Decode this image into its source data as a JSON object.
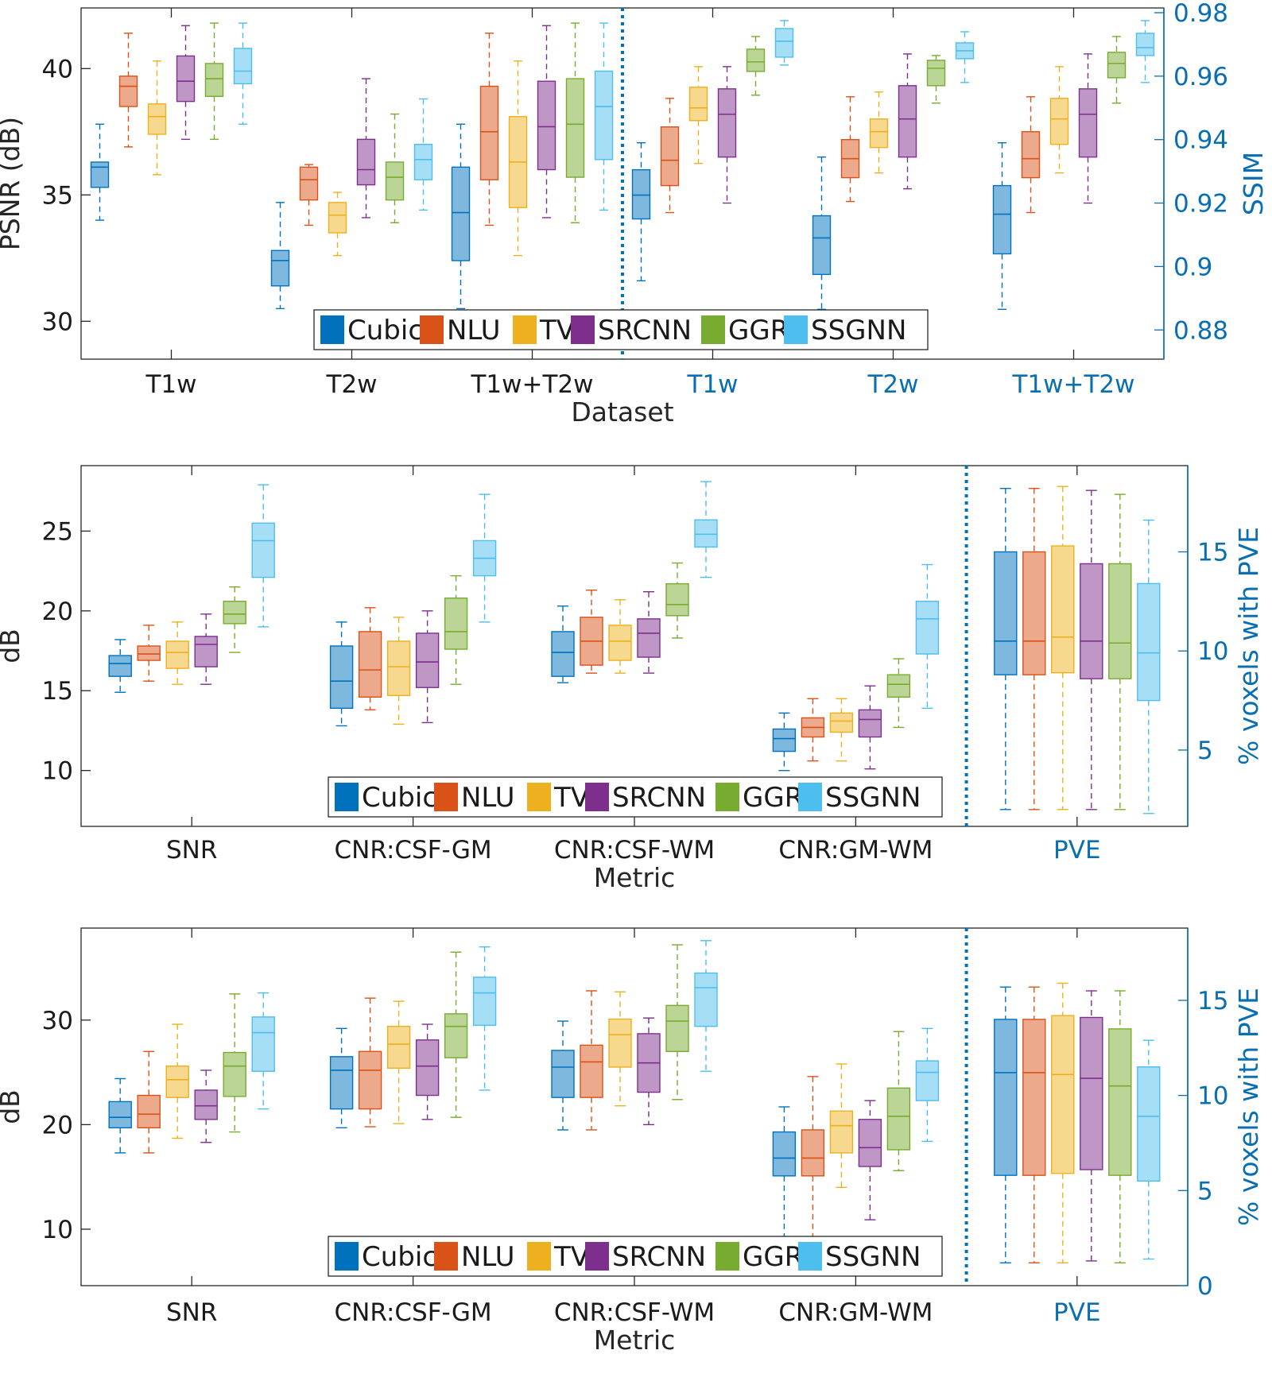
{
  "colors": {
    "Cubic": "#0072bd",
    "NLU": "#d95319",
    "TV": "#edb120",
    "SRCNN": "#7e2f8e",
    "GGR": "#77ac30",
    "SSGNN": "#4dbeee",
    "right_axis": "#0a6fb0",
    "divider": "#0072bd"
  },
  "legend": [
    "Cubic",
    "NLU",
    "TV",
    "SRCNN",
    "GGR",
    "SSGNN"
  ],
  "chart_data": [
    {
      "type": "box",
      "title": "",
      "xlabel": "Dataset",
      "categories": [
        "T1w",
        "T2w",
        "T1w+T2w",
        "T1w",
        "T2w",
        "T1w+T2w"
      ],
      "right_categories_from": 3,
      "divider_after": 3,
      "legend_position": "bottom-center",
      "left_axis": {
        "label": "PSNR (dB)",
        "range": [
          28.5,
          42.4
        ],
        "ticks": [
          30,
          35,
          40
        ]
      },
      "right_axis": {
        "label": "SSIM",
        "range": [
          0.8708,
          0.9815
        ],
        "ticks": [
          0.88,
          0.9,
          0.92,
          0.94,
          0.96,
          0.98
        ],
        "tick_labels": [
          "0.88",
          "0.9",
          "0.92",
          "0.94",
          "0.96",
          "0.98"
        ]
      },
      "series": [
        {
          "name": "Cubic",
          "boxes": [
            {
              "wlo": 34,
              "q1": 35.3,
              "med": 36.1,
              "q3": 36.3,
              "whi": 37.8
            },
            {
              "wlo": 30.5,
              "q1": 31.4,
              "med": 32.4,
              "q3": 32.8,
              "whi": 34.7
            },
            {
              "wlo": 30.5,
              "q1": 32.4,
              "med": 34.3,
              "q3": 36.1,
              "whi": 37.8
            },
            {
              "wlo": 0.8955,
              "q1": 0.915,
              "med": 0.9225,
              "q3": 0.9305,
              "whi": 0.939
            },
            {
              "wlo": 0.8865,
              "q1": 0.8975,
              "med": 0.909,
              "q3": 0.916,
              "whi": 0.9345
            },
            {
              "wlo": 0.8865,
              "q1": 0.904,
              "med": 0.9165,
              "q3": 0.9255,
              "whi": 0.939
            }
          ]
        },
        {
          "name": "NLU",
          "boxes": [
            {
              "wlo": 36.9,
              "q1": 38.5,
              "med": 39.3,
              "q3": 39.7,
              "whi": 41.4
            },
            {
              "wlo": 33.8,
              "q1": 34.8,
              "med": 35.6,
              "q3": 36.1,
              "whi": 36.2
            },
            {
              "wlo": 33.8,
              "q1": 35.6,
              "med": 37.5,
              "q3": 39.3,
              "whi": 41.4
            },
            {
              "wlo": 0.917,
              "q1": 0.9255,
              "med": 0.9335,
              "q3": 0.944,
              "whi": 0.953
            },
            {
              "wlo": 0.9205,
              "q1": 0.928,
              "med": 0.934,
              "q3": 0.94,
              "whi": 0.9535
            },
            {
              "wlo": 0.917,
              "q1": 0.928,
              "med": 0.934,
              "q3": 0.9425,
              "whi": 0.9535
            }
          ]
        },
        {
          "name": "TV",
          "boxes": [
            {
              "wlo": 35.8,
              "q1": 37.4,
              "med": 38.1,
              "q3": 38.6,
              "whi": 40.3
            },
            {
              "wlo": 32.6,
              "q1": 33.5,
              "med": 34.2,
              "q3": 34.7,
              "whi": 35.1
            },
            {
              "wlo": 32.6,
              "q1": 34.5,
              "med": 36.3,
              "q3": 38.1,
              "whi": 40.3
            },
            {
              "wlo": 0.9325,
              "q1": 0.946,
              "med": 0.95,
              "q3": 0.9565,
              "whi": 0.963
            },
            {
              "wlo": 0.9295,
              "q1": 0.9375,
              "med": 0.9425,
              "q3": 0.9465,
              "whi": 0.955
            },
            {
              "wlo": 0.9295,
              "q1": 0.9385,
              "med": 0.9465,
              "q3": 0.953,
              "whi": 0.963
            }
          ]
        },
        {
          "name": "SRCNN",
          "boxes": [
            {
              "wlo": 37.2,
              "q1": 38.7,
              "med": 39.5,
              "q3": 40.5,
              "whi": 41.7
            },
            {
              "wlo": 34.1,
              "q1": 35.4,
              "med": 36,
              "q3": 37.2,
              "whi": 39.6
            },
            {
              "wlo": 34.1,
              "q1": 36,
              "med": 37.7,
              "q3": 39.5,
              "whi": 41.7
            },
            {
              "wlo": 0.92,
              "q1": 0.9345,
              "med": 0.948,
              "q3": 0.956,
              "whi": 0.963
            },
            {
              "wlo": 0.9245,
              "q1": 0.9345,
              "med": 0.9465,
              "q3": 0.957,
              "whi": 0.967
            },
            {
              "wlo": 0.92,
              "q1": 0.9345,
              "med": 0.948,
              "q3": 0.956,
              "whi": 0.967
            }
          ]
        },
        {
          "name": "GGR",
          "boxes": [
            {
              "wlo": 37.2,
              "q1": 38.9,
              "med": 39.6,
              "q3": 40.2,
              "whi": 41.8
            },
            {
              "wlo": 33.9,
              "q1": 34.8,
              "med": 35.7,
              "q3": 36.3,
              "whi": 38.2
            },
            {
              "wlo": 33.9,
              "q1": 35.7,
              "med": 37.8,
              "q3": 39.6,
              "whi": 41.8
            },
            {
              "wlo": 0.954,
              "q1": 0.9615,
              "med": 0.9645,
              "q3": 0.9685,
              "whi": 0.9725
            },
            {
              "wlo": 0.9515,
              "q1": 0.957,
              "med": 0.9625,
              "q3": 0.965,
              "whi": 0.9665
            },
            {
              "wlo": 0.9515,
              "q1": 0.9595,
              "med": 0.964,
              "q3": 0.9675,
              "whi": 0.9725
            }
          ]
        },
        {
          "name": "SSGNN",
          "boxes": [
            {
              "wlo": 37.8,
              "q1": 39.4,
              "med": 39.9,
              "q3": 40.8,
              "whi": 41.8
            },
            {
              "wlo": 34.4,
              "q1": 35.6,
              "med": 36.4,
              "q3": 37,
              "whi": 38.8
            },
            {
              "wlo": 34.4,
              "q1": 36.4,
              "med": 38.5,
              "q3": 39.9,
              "whi": 41.8
            },
            {
              "wlo": 0.9635,
              "q1": 0.966,
              "med": 0.971,
              "q3": 0.975,
              "whi": 0.9775
            },
            {
              "wlo": 0.958,
              "q1": 0.9655,
              "med": 0.968,
              "q3": 0.9705,
              "whi": 0.974
            },
            {
              "wlo": 0.958,
              "q1": 0.9665,
              "med": 0.969,
              "q3": 0.9735,
              "whi": 0.9775
            }
          ]
        }
      ]
    },
    {
      "type": "box",
      "title": "",
      "xlabel": "Metric",
      "categories": [
        "SNR",
        "CNR:CSF-GM",
        "CNR:CSF-WM",
        "CNR:GM-WM",
        "PVE"
      ],
      "right_categories_from": 4,
      "divider_after": 4,
      "legend_position": "bottom-left",
      "left_axis": {
        "label": "dB",
        "range": [
          6.5,
          29.1
        ],
        "ticks": [
          10,
          15,
          20,
          25
        ]
      },
      "right_axis": {
        "label": "% voxels with PVE",
        "range": [
          1.15,
          19.35
        ],
        "ticks": [
          5,
          10,
          15
        ],
        "tick_labels": [
          "5",
          "10",
          "15"
        ]
      },
      "series": [
        {
          "name": "Cubic",
          "boxes": [
            {
              "wlo": 14.9,
              "q1": 15.9,
              "med": 16.7,
              "q3": 17.2,
              "whi": 18.2
            },
            {
              "wlo": 12.8,
              "q1": 13.9,
              "med": 15.6,
              "q3": 17.8,
              "whi": 19.3
            },
            {
              "wlo": 15.5,
              "q1": 15.9,
              "med": 17.4,
              "q3": 18.7,
              "whi": 20.3
            },
            {
              "wlo": 10,
              "q1": 11.2,
              "med": 12,
              "q3": 12.6,
              "whi": 13.6
            },
            {
              "wlo": 2.0,
              "q1": 8.8,
              "med": 10.5,
              "q3": 15.0,
              "whi": 18.2
            }
          ]
        },
        {
          "name": "NLU",
          "boxes": [
            {
              "wlo": 15.6,
              "q1": 16.9,
              "med": 17.3,
              "q3": 17.8,
              "whi": 19.1
            },
            {
              "wlo": 13.8,
              "q1": 14.6,
              "med": 16.3,
              "q3": 18.7,
              "whi": 20.2
            },
            {
              "wlo": 16.1,
              "q1": 16.6,
              "med": 18.1,
              "q3": 19.6,
              "whi": 21.3
            },
            {
              "wlo": 10.6,
              "q1": 12.1,
              "med": 12.7,
              "q3": 13.3,
              "whi": 14.5
            },
            {
              "wlo": 2.0,
              "q1": 8.8,
              "med": 10.5,
              "q3": 15.0,
              "whi": 18.2
            }
          ]
        },
        {
          "name": "TV",
          "boxes": [
            {
              "wlo": 15.4,
              "q1": 16.4,
              "med": 17.4,
              "q3": 18.1,
              "whi": 19.3
            },
            {
              "wlo": 12.9,
              "q1": 14.7,
              "med": 16.5,
              "q3": 18.1,
              "whi": 19.6
            },
            {
              "wlo": 16.1,
              "q1": 16.9,
              "med": 18.1,
              "q3": 19.1,
              "whi": 20.7
            },
            {
              "wlo": 10.6,
              "q1": 12.4,
              "med": 13.1,
              "q3": 13.6,
              "whi": 14.5
            },
            {
              "wlo": 2.0,
              "q1": 8.9,
              "med": 10.7,
              "q3": 15.3,
              "whi": 18.3
            }
          ]
        },
        {
          "name": "SRCNN",
          "boxes": [
            {
              "wlo": 15.4,
              "q1": 16.5,
              "med": 17.9,
              "q3": 18.4,
              "whi": 19.8
            },
            {
              "wlo": 13,
              "q1": 15.2,
              "med": 16.8,
              "q3": 18.6,
              "whi": 20
            },
            {
              "wlo": 16.1,
              "q1": 17.1,
              "med": 18.6,
              "q3": 19.5,
              "whi": 21.2
            },
            {
              "wlo": 10.1,
              "q1": 12.1,
              "med": 13.2,
              "q3": 13.8,
              "whi": 15.3
            },
            {
              "wlo": 2.0,
              "q1": 8.6,
              "med": 10.5,
              "q3": 14.4,
              "whi": 18.1
            }
          ]
        },
        {
          "name": "GGR",
          "boxes": [
            {
              "wlo": 17.4,
              "q1": 19.2,
              "med": 19.8,
              "q3": 20.6,
              "whi": 21.5
            },
            {
              "wlo": 15.4,
              "q1": 17.6,
              "med": 18.7,
              "q3": 20.8,
              "whi": 22.2
            },
            {
              "wlo": 18.3,
              "q1": 19.7,
              "med": 20.4,
              "q3": 21.7,
              "whi": 23
            },
            {
              "wlo": 12.7,
              "q1": 14.6,
              "med": 15.4,
              "q3": 16,
              "whi": 17
            },
            {
              "wlo": 2.0,
              "q1": 8.6,
              "med": 10.4,
              "q3": 14.4,
              "whi": 17.9
            }
          ]
        },
        {
          "name": "SSGNN",
          "boxes": [
            {
              "wlo": 19,
              "q1": 22.1,
              "med": 24.4,
              "q3": 25.5,
              "whi": 27.9
            },
            {
              "wlo": 19.3,
              "q1": 22.2,
              "med": 23.3,
              "q3": 24.4,
              "whi": 27.3
            },
            {
              "wlo": 22.1,
              "q1": 24,
              "med": 24.8,
              "q3": 25.7,
              "whi": 28.1
            },
            {
              "wlo": 13.9,
              "q1": 17.3,
              "med": 19.5,
              "q3": 20.6,
              "whi": 22.9
            },
            {
              "wlo": 1.8,
              "q1": 7.5,
              "med": 9.9,
              "q3": 13.4,
              "whi": 16.6
            }
          ]
        }
      ]
    },
    {
      "type": "box",
      "title": "",
      "xlabel": "Metric",
      "categories": [
        "SNR",
        "CNR:CSF-GM",
        "CNR:CSF-WM",
        "CNR:GM-WM",
        "PVE"
      ],
      "right_categories_from": 4,
      "divider_after": 4,
      "legend_position": "bottom-left",
      "left_axis": {
        "label": "dB",
        "range": [
          4.6,
          38.8
        ],
        "ticks": [
          10,
          20,
          30
        ]
      },
      "right_axis": {
        "label": "% voxels with PVE",
        "range": [
          0,
          18.8
        ],
        "ticks": [
          0,
          5,
          10,
          15
        ],
        "tick_labels": [
          "0",
          "5",
          "10",
          "15"
        ]
      },
      "series": [
        {
          "name": "Cubic",
          "boxes": [
            {
              "wlo": 17.3,
              "q1": 19.7,
              "med": 20.7,
              "q3": 22.2,
              "whi": 24.4
            },
            {
              "wlo": 19.7,
              "q1": 21.5,
              "med": 25.2,
              "q3": 26.5,
              "whi": 29.2
            },
            {
              "wlo": 19.5,
              "q1": 22.6,
              "med": 25.5,
              "q3": 27.1,
              "whi": 29.9
            },
            {
              "wlo": 9,
              "q1": 15.1,
              "med": 16.8,
              "q3": 19.3,
              "whi": 21.7
            },
            {
              "wlo": 1.2,
              "q1": 5.8,
              "med": 11.2,
              "q3": 14.0,
              "whi": 15.7
            }
          ]
        },
        {
          "name": "NLU",
          "boxes": [
            {
              "wlo": 17.3,
              "q1": 19.7,
              "med": 21,
              "q3": 22.8,
              "whi": 27
            },
            {
              "wlo": 19.8,
              "q1": 21.5,
              "med": 25.2,
              "q3": 27,
              "whi": 32.1
            },
            {
              "wlo": 19.5,
              "q1": 22.6,
              "med": 26,
              "q3": 27.6,
              "whi": 32.8
            },
            {
              "wlo": 9,
              "q1": 15.1,
              "med": 16.8,
              "q3": 19.5,
              "whi": 24.6
            },
            {
              "wlo": 1.2,
              "q1": 5.8,
              "med": 11.2,
              "q3": 14.0,
              "whi": 15.7
            }
          ]
        },
        {
          "name": "TV",
          "boxes": [
            {
              "wlo": 18.7,
              "q1": 22.6,
              "med": 24.3,
              "q3": 25.6,
              "whi": 29.6
            },
            {
              "wlo": 20.1,
              "q1": 25.4,
              "med": 27.7,
              "q3": 29.4,
              "whi": 31.8
            },
            {
              "wlo": 21.8,
              "q1": 25.5,
              "med": 28.6,
              "q3": 30.1,
              "whi": 32.7
            },
            {
              "wlo": 14,
              "q1": 17.3,
              "med": 19.9,
              "q3": 21.3,
              "whi": 25.8
            },
            {
              "wlo": 1.2,
              "q1": 5.9,
              "med": 11.1,
              "q3": 14.2,
              "whi": 15.9
            }
          ]
        },
        {
          "name": "SRCNN",
          "boxes": [
            {
              "wlo": 18.3,
              "q1": 20.5,
              "med": 21.8,
              "q3": 23.3,
              "whi": 25.2
            },
            {
              "wlo": 20.5,
              "q1": 22.8,
              "med": 25.6,
              "q3": 28.1,
              "whi": 29.6
            },
            {
              "wlo": 20,
              "q1": 23.1,
              "med": 25.9,
              "q3": 28.7,
              "whi": 30.2
            },
            {
              "wlo": 10.9,
              "q1": 16,
              "med": 17.8,
              "q3": 20.5,
              "whi": 22.3
            },
            {
              "wlo": 1.3,
              "q1": 6.1,
              "med": 10.9,
              "q3": 14.1,
              "whi": 15.5
            }
          ]
        },
        {
          "name": "GGR",
          "boxes": [
            {
              "wlo": 19.3,
              "q1": 22.7,
              "med": 25.6,
              "q3": 26.9,
              "whi": 32.5
            },
            {
              "wlo": 20.7,
              "q1": 26.4,
              "med": 29.4,
              "q3": 30.6,
              "whi": 36.5
            },
            {
              "wlo": 22.4,
              "q1": 27,
              "med": 29.9,
              "q3": 31.4,
              "whi": 37.2
            },
            {
              "wlo": 15.6,
              "q1": 17.6,
              "med": 20.8,
              "q3": 23.5,
              "whi": 28.9
            },
            {
              "wlo": 1.2,
              "q1": 5.8,
              "med": 10.5,
              "q3": 13.5,
              "whi": 15.5
            }
          ]
        },
        {
          "name": "SSGNN",
          "boxes": [
            {
              "wlo": 21.5,
              "q1": 25.1,
              "med": 28.8,
              "q3": 30.3,
              "whi": 32.6
            },
            {
              "wlo": 23.3,
              "q1": 29.5,
              "med": 32.6,
              "q3": 34.1,
              "whi": 37
            },
            {
              "wlo": 25.1,
              "q1": 29.4,
              "med": 33.1,
              "q3": 34.5,
              "whi": 37.6
            },
            {
              "wlo": 18.4,
              "q1": 22.3,
              "med": 25,
              "q3": 26.1,
              "whi": 29.2
            },
            {
              "wlo": 1.4,
              "q1": 5.5,
              "med": 8.9,
              "q3": 11.5,
              "whi": 12.9
            }
          ]
        }
      ]
    }
  ]
}
